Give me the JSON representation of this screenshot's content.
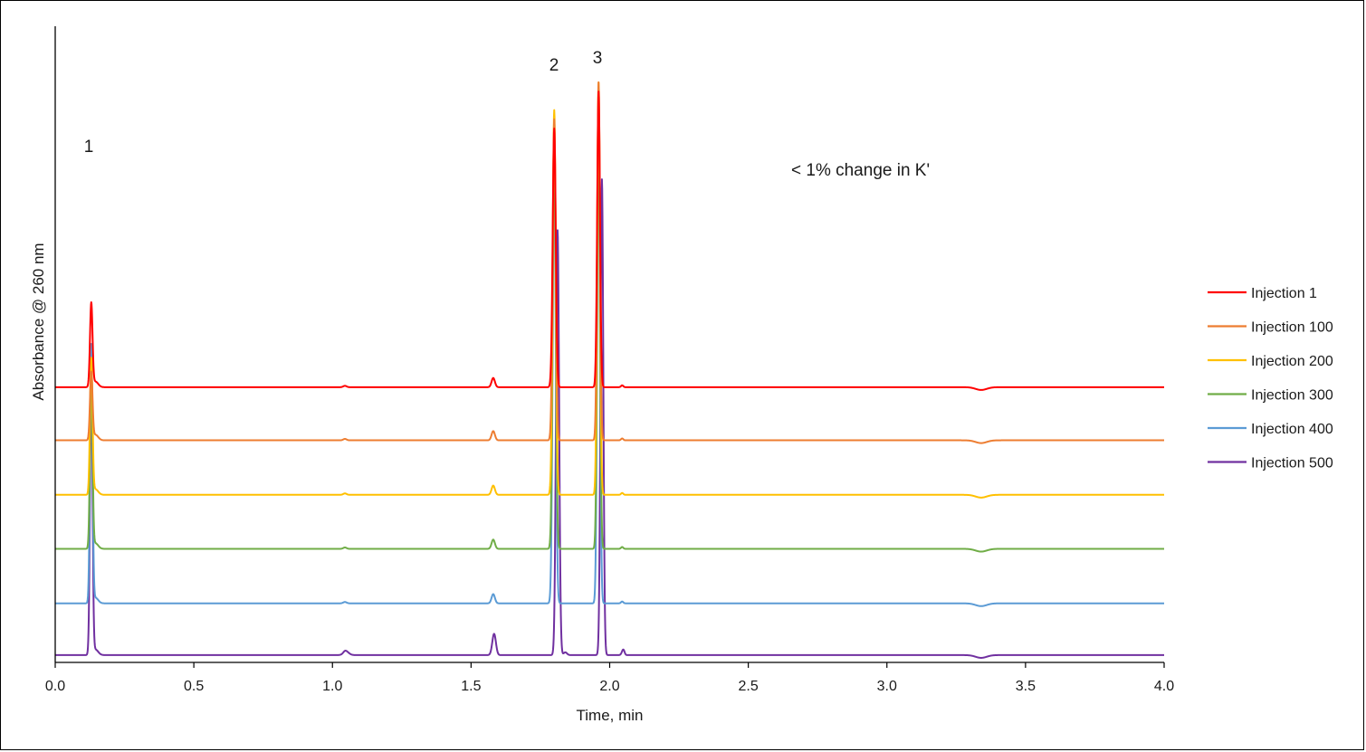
{
  "chart_data": {
    "type": "line",
    "title": "",
    "xlabel": "Time, min",
    "ylabel": "Absorbance @ 260 nm",
    "xlim": [
      0.0,
      4.0
    ],
    "ylim": [
      0,
      1
    ],
    "x_ticks": [
      "0.0",
      "0.5",
      "1.0",
      "1.5",
      "2.0",
      "2.5",
      "3.0",
      "3.5",
      "4.0"
    ],
    "grid": false,
    "legend_position": "right",
    "annotation": "< 1% change in K'",
    "peaks": [
      {
        "label": "1",
        "time": 0.13
      },
      {
        "label": "2",
        "time": 1.8
      },
      {
        "label": "3",
        "time": 1.96
      }
    ],
    "series": [
      {
        "name": "Injection 1",
        "color": "#ff0000",
        "baseline": 0.59,
        "peak_heights": [
          0.77,
          1.15,
          1.23
        ]
      },
      {
        "name": "Injection 100",
        "color": "#ed7d31",
        "baseline": 0.475,
        "peak_heights": [
          0.62,
          1.17,
          1.25
        ]
      },
      {
        "name": "Injection 200",
        "color": "#ffc000",
        "baseline": 0.357,
        "peak_heights": [
          0.65,
          1.19,
          1.25
        ]
      },
      {
        "name": "Injection 300",
        "color": "#70ad47",
        "baseline": 0.24,
        "peak_heights": [
          0.63,
          1.12,
          1.14
        ]
      },
      {
        "name": "Injection 400",
        "color": "#5b9bd5",
        "baseline": 0.122,
        "peak_heights": [
          0.68,
          1.06,
          1.12
        ]
      },
      {
        "name": "Injection 500",
        "color": "#7030a0",
        "baseline": 0.01,
        "peak_heights": [
          0.6,
          0.93,
          1.04
        ]
      }
    ]
  }
}
